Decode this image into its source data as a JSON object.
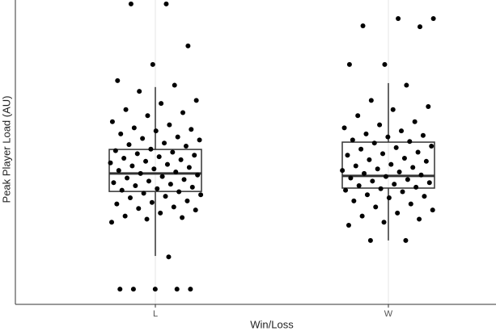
{
  "chart_data": {
    "type": "box",
    "x_label": "Win/Loss",
    "y_label": "Peak Player Load (AU)",
    "categories": [
      "L",
      "W"
    ],
    "ylim": [
      0,
      100
    ],
    "grid": true,
    "boxes": [
      {
        "whislo": 15.9,
        "q1": 37.1,
        "med": 43.0,
        "q3": 50.9,
        "whishi": 71.4
      },
      {
        "whislo": 21.0,
        "q1": 38.2,
        "med": 42.2,
        "q3": 53.3,
        "whishi": 72.7
      }
    ],
    "points": [
      [
        98.7,
        98.7,
        84.9,
        78.8,
        73.5,
        72,
        70,
        67,
        66,
        64,
        63,
        62,
        60,
        59,
        58,
        57.5,
        57,
        56,
        55,
        54.5,
        54,
        53,
        52.5,
        52,
        51,
        50.5,
        50,
        49.5,
        49,
        48.5,
        48,
        47.5,
        47,
        46.5,
        46,
        45.5,
        45,
        44.5,
        44,
        43.5,
        43,
        42.5,
        42,
        41.5,
        41,
        40.5,
        40,
        39.5,
        39,
        38.5,
        38,
        37.5,
        37,
        36.5,
        36,
        35.5,
        35,
        34,
        33.5,
        33,
        32,
        31.5,
        31,
        30,
        29,
        28.5,
        28,
        27,
        15.6,
        5,
        5,
        5,
        5,
        5
      ],
      [
        93.9,
        93.9,
        91.5,
        91.2,
        78.8,
        78.8,
        72,
        67,
        65,
        64,
        62,
        60,
        59,
        58,
        57,
        56,
        55.5,
        55,
        54,
        53.5,
        53,
        52,
        51.5,
        51,
        50,
        49.5,
        49,
        48,
        47.5,
        47,
        46,
        45.5,
        45,
        44.5,
        44,
        43.5,
        43,
        42.5,
        42,
        41.5,
        41,
        40.5,
        40,
        39.5,
        39,
        38.5,
        38,
        37.5,
        37,
        36,
        35.5,
        35,
        34,
        33,
        32,
        31,
        30,
        29,
        28,
        27,
        26,
        21,
        21
      ]
    ],
    "point_color": "#000000",
    "box_color": "#333333"
  }
}
